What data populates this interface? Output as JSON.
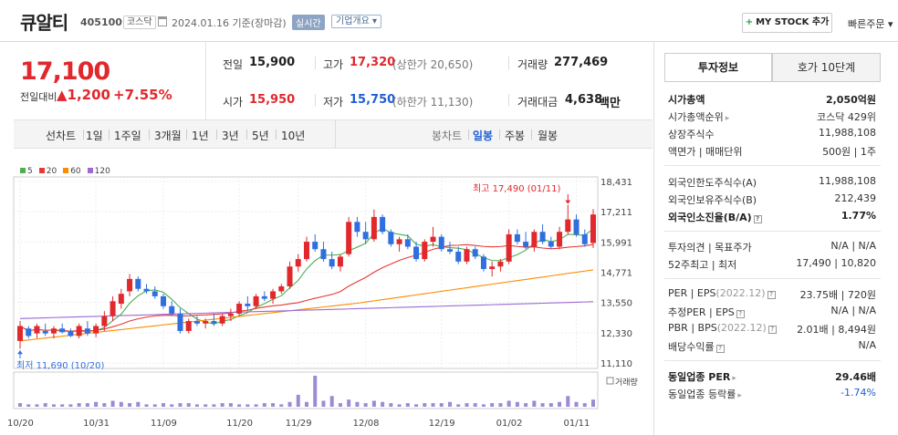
{
  "header": {
    "name": "큐알티",
    "code": "405100",
    "market_tag": "코스닥",
    "date_text": "2024.01.16  기준(장마감)",
    "realtime_label": "실시간",
    "company_label": "기업개요 ▾",
    "mystock_plus": "+",
    "mystock_label": "MY STOCK 추가",
    "quick_order": "빠른주문 ▾"
  },
  "quote": {
    "price": "17,100",
    "change_label": "전일대비",
    "change_value": "▲1,200",
    "change_pct": "+7.55%",
    "prev_label": "전일",
    "prev_value": "15,900",
    "high_label": "고가",
    "high_value": "17,320",
    "upper_limit": "(상한가 20,650)",
    "volume_label": "거래량",
    "volume_value": "277,469",
    "open_label": "시가",
    "open_value": "15,950",
    "low_label": "저가",
    "low_value": "15,750",
    "lower_limit": "(하한가 11,130)",
    "amount_label": "거래대금",
    "amount_value": "4,638",
    "amount_unit": "백만"
  },
  "toolbar": {
    "line_chart": "선차트",
    "periods": [
      "1일",
      "1주일",
      "3개월",
      "1년",
      "3년",
      "5년",
      "10년"
    ],
    "candle_chart": "봉차트",
    "candle_periods": [
      "일봉",
      "주봉",
      "월봉"
    ],
    "selected_candle": "일봉"
  },
  "legend": [
    {
      "label": "5",
      "color": "#4caf50"
    },
    {
      "label": "20",
      "color": "#e53935"
    },
    {
      "label": "60",
      "color": "#fb8c00"
    },
    {
      "label": "120",
      "color": "#9c6ad4"
    }
  ],
  "chart_data": {
    "type": "candlestick",
    "y_ticks": [
      "18,431",
      "17,211",
      "15,991",
      "14,771",
      "13,550",
      "12,330",
      "11,110"
    ],
    "ylim": [
      11110,
      18431
    ],
    "x_ticks": [
      "10/20",
      "10/31",
      "11/09",
      "11/20",
      "11/29",
      "12/08",
      "12/19",
      "01/02",
      "01/11"
    ],
    "high_annotation": "최고 17,490 (01/11)",
    "low_annotation": "최저 11,690 (10/20)",
    "volume_label": "거래량",
    "candles": [
      [
        12000,
        12800,
        11690,
        12600
      ],
      [
        12500,
        12600,
        12100,
        12200
      ],
      [
        12300,
        12700,
        12100,
        12600
      ],
      [
        12400,
        12700,
        12200,
        12300
      ],
      [
        12300,
        12600,
        12100,
        12500
      ],
      [
        12500,
        12700,
        12300,
        12350
      ],
      [
        12400,
        12500,
        12150,
        12200
      ],
      [
        12200,
        12700,
        12100,
        12600
      ],
      [
        12500,
        12800,
        12200,
        12300
      ],
      [
        12300,
        12700,
        12150,
        12600
      ],
      [
        12600,
        13200,
        12400,
        13000
      ],
      [
        13000,
        13800,
        12800,
        13600
      ],
      [
        13500,
        14100,
        13300,
        13900
      ],
      [
        14000,
        14700,
        13800,
        14500
      ],
      [
        14500,
        14600,
        14000,
        14100
      ],
      [
        14100,
        14300,
        13900,
        14000
      ],
      [
        14000,
        14200,
        13700,
        13800
      ],
      [
        13800,
        13900,
        13300,
        13400
      ],
      [
        13400,
        13600,
        13000,
        13100
      ],
      [
        13100,
        13300,
        12300,
        12400
      ],
      [
        12400,
        12900,
        12300,
        12800
      ],
      [
        12800,
        13000,
        12600,
        12700
      ],
      [
        12700,
        12900,
        12500,
        12800
      ],
      [
        12800,
        13100,
        12600,
        12700
      ],
      [
        12700,
        13100,
        12600,
        13000
      ],
      [
        13000,
        13300,
        12800,
        13100
      ],
      [
        13100,
        13600,
        13000,
        13500
      ],
      [
        13500,
        13800,
        13200,
        13400
      ],
      [
        13400,
        13900,
        13300,
        13800
      ],
      [
        13800,
        14000,
        13600,
        13700
      ],
      [
        13700,
        14100,
        13500,
        14000
      ],
      [
        14000,
        14300,
        13900,
        14200
      ],
      [
        14200,
        15200,
        14100,
        15000
      ],
      [
        15000,
        15500,
        14800,
        15300
      ],
      [
        15300,
        16200,
        15200,
        16000
      ],
      [
        16000,
        16300,
        15600,
        15700
      ],
      [
        15700,
        16000,
        15200,
        15300
      ],
      [
        15300,
        15600,
        14900,
        15000
      ],
      [
        15000,
        15500,
        14800,
        15400
      ],
      [
        15500,
        17000,
        15400,
        16800
      ],
      [
        16800,
        17000,
        16200,
        16400
      ],
      [
        16400,
        16800,
        15900,
        16100
      ],
      [
        16100,
        17300,
        16000,
        17000
      ],
      [
        17000,
        17100,
        16300,
        16400
      ],
      [
        16400,
        16500,
        15800,
        15900
      ],
      [
        15900,
        16200,
        15600,
        16100
      ],
      [
        16100,
        16300,
        15700,
        15800
      ],
      [
        15800,
        16000,
        15200,
        15300
      ],
      [
        15300,
        16100,
        15200,
        16000
      ],
      [
        16000,
        16600,
        15800,
        16200
      ],
      [
        16200,
        16300,
        15600,
        15700
      ],
      [
        15700,
        16000,
        15500,
        15600
      ],
      [
        15600,
        15800,
        15100,
        15200
      ],
      [
        15200,
        15800,
        15100,
        15700
      ],
      [
        15700,
        15800,
        15300,
        15400
      ],
      [
        15400,
        15500,
        14800,
        14900
      ],
      [
        14900,
        15200,
        14600,
        15000
      ],
      [
        15000,
        15300,
        14800,
        15200
      ],
      [
        15200,
        16500,
        15100,
        16300
      ],
      [
        16300,
        16500,
        15900,
        16000
      ],
      [
        16000,
        16400,
        15700,
        15800
      ],
      [
        15800,
        16500,
        15600,
        16400
      ],
      [
        16400,
        16700,
        15900,
        16000
      ],
      [
        16000,
        16200,
        15700,
        15800
      ],
      [
        15800,
        16600,
        15700,
        16400
      ],
      [
        16400,
        17490,
        16300,
        16900
      ],
      [
        16900,
        17100,
        16200,
        16300
      ],
      [
        16300,
        16500,
        15800,
        15900
      ],
      [
        15950,
        17320,
        15750,
        17100
      ]
    ],
    "volumes": [
      3,
      2,
      2,
      3,
      2,
      2,
      2,
      3,
      3,
      4,
      3,
      5,
      4,
      3,
      4,
      2,
      2,
      3,
      2,
      3,
      3,
      2,
      2,
      2,
      3,
      3,
      2,
      2,
      2,
      3,
      3,
      2,
      4,
      10,
      4,
      26,
      5,
      9,
      3,
      6,
      4,
      3,
      5,
      4,
      3,
      2,
      3,
      2,
      3,
      3,
      3,
      4,
      2,
      3,
      3,
      2,
      3,
      3,
      5,
      4,
      3,
      5,
      3,
      3,
      4,
      9,
      4,
      3,
      6
    ]
  },
  "panel": {
    "tab_active": "투자정보",
    "tab_other": "호가 10단계",
    "rows1": [
      {
        "label": "시가총액",
        "value": "2,050억원",
        "bold": true
      },
      {
        "label": "시가총액순위",
        "value": "코스닥 429위"
      },
      {
        "label": "상장주식수",
        "value": "11,988,108"
      },
      {
        "label": "액면가 | 매매단위",
        "value": "500원 | 1주"
      }
    ],
    "rows2": [
      {
        "label": "외국인한도주식수(A)",
        "value": "11,988,108"
      },
      {
        "label": "외국인보유주식수(B)",
        "value": "212,439"
      },
      {
        "label": "외국인소진율(B/A)",
        "value": "1.77%",
        "bold": true
      }
    ],
    "rows3": [
      {
        "label": "투자의견 | 목표주가",
        "value": "N/A | N/A"
      },
      {
        "label": "52주최고 | 최저",
        "value": "17,490 | 10,820"
      }
    ],
    "rows4": [
      {
        "label": "PER | EPS",
        "sub": "(2022.12)",
        "value": "23.75배 | 720원"
      },
      {
        "label": "추정PER | EPS",
        "value": "N/A | N/A"
      },
      {
        "label": "PBR | BPS",
        "sub": "(2022.12)",
        "value": "2.01배 | 8,494원"
      },
      {
        "label": "배당수익률",
        "value": "N/A"
      }
    ],
    "rows5": [
      {
        "label": "동일업종 PER",
        "value": "29.46배",
        "bold": true
      },
      {
        "label": "동일업종 등락률",
        "value": "-1.74%"
      }
    ]
  }
}
